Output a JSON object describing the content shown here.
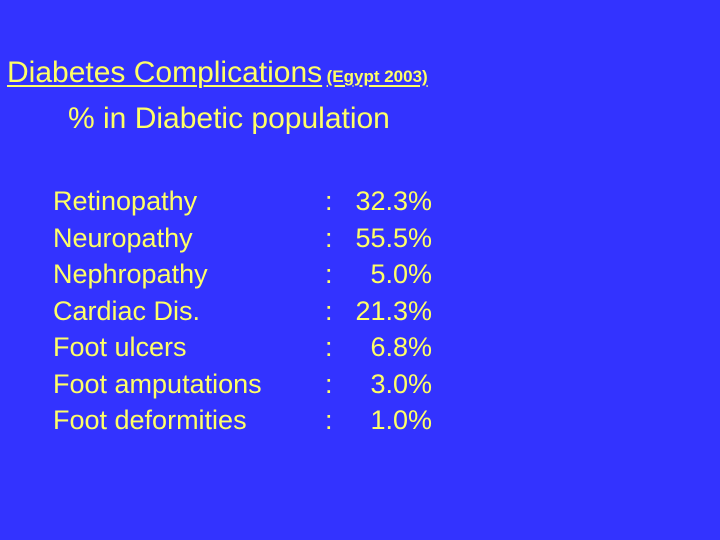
{
  "slide": {
    "title": "Diabetes Complications",
    "title_note": "(Egypt 2003)",
    "subtitle": "% in Diabetic population",
    "separator": ":",
    "rows": [
      {
        "label": "Retinopathy",
        "value": "32.3%"
      },
      {
        "label": "Neuropathy",
        "value": "55.5%"
      },
      {
        "label": "Nephropathy",
        "value": "5.0%"
      },
      {
        "label": "Cardiac Dis.",
        "value": "21.3%"
      },
      {
        "label": "Foot ulcers",
        "value": "6.8%"
      },
      {
        "label": "Foot amputations",
        "value": "3.0%"
      },
      {
        "label": "Foot deformities",
        "value": "1.0%"
      }
    ]
  },
  "colors": {
    "background": "#3333ff",
    "text": "#ffff66"
  }
}
